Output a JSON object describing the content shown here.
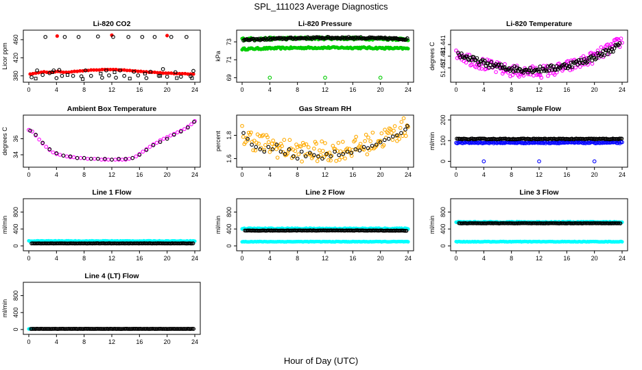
{
  "figure": {
    "title": "SPL_111023  Average Diagnostics",
    "xlabel": "Hour of Day (UTC)"
  },
  "chart_data": [
    {
      "type": "scatter",
      "title": "Li-820 CO2",
      "xlabel": "",
      "ylabel": "Licor ppm",
      "xlim": [
        0,
        24
      ],
      "ylim": [
        372,
        475
      ],
      "xticks": [
        "0",
        "4",
        "8",
        "12",
        "16",
        "20",
        "24"
      ],
      "yticks": [
        "380",
        "420",
        "460"
      ],
      "grid": false,
      "series": [
        {
          "marker": "circle-filled",
          "color": "#ff0000",
          "x": [
            0.2,
            0.6,
            1.0,
            1.4,
            1.8,
            2.2,
            2.6,
            3.0,
            3.4,
            3.8,
            4.2,
            4.6,
            5.0,
            5.4,
            5.8,
            6.2,
            6.6,
            7.0,
            7.4,
            7.8,
            8.2,
            8.6,
            9.0,
            9.4,
            9.8,
            10.2,
            10.6,
            11.0,
            11.4,
            11.8,
            12.2,
            12.6,
            13.0,
            13.4,
            13.8,
            14.2,
            14.6,
            15.0,
            15.4,
            15.8,
            16.2,
            16.6,
            17.0,
            17.4,
            17.8,
            18.2,
            18.6,
            19.0,
            19.4,
            19.8,
            20.2,
            20.6,
            21.0,
            21.4,
            21.8,
            22.2,
            22.6,
            23.0,
            23.4,
            23.8,
            4.1,
            12.0,
            20.0
          ],
          "y": [
            384,
            385,
            386,
            387,
            388,
            389,
            388,
            388,
            388,
            389,
            390,
            389,
            388,
            388,
            388,
            389,
            390,
            390,
            391,
            391,
            392,
            392,
            393,
            393,
            393,
            393,
            394,
            394,
            394,
            394,
            394,
            394,
            393,
            393,
            393,
            392,
            392,
            391,
            391,
            390,
            390,
            389,
            389,
            388,
            388,
            388,
            387,
            387,
            386,
            386,
            386,
            386,
            385,
            385,
            385,
            385,
            385,
            384,
            384,
            384,
            468,
            470,
            469
          ]
        },
        {
          "marker": "circle-open",
          "color": "#000000",
          "x": [
            0.4,
            1.2,
            2.0,
            2.4,
            3.0,
            3.6,
            4.0,
            4.4,
            4.8,
            5.2,
            6.4,
            7.2,
            7.6,
            8.2,
            9.0,
            10.0,
            10.6,
            11.2,
            11.6,
            12.2,
            12.6,
            13.2,
            13.8,
            14.4,
            15.2,
            15.8,
            16.4,
            17.0,
            17.6,
            18.2,
            18.8,
            19.4,
            20.0,
            20.6,
            21.2,
            22.0,
            22.8,
            23.4,
            23.8
          ],
          "y": [
            377,
            392,
            382,
            466,
            386,
            392,
            375,
            393,
            380,
            466,
            380,
            466,
            379,
            392,
            380,
            467,
            376,
            392,
            381,
            466,
            376,
            392,
            380,
            466,
            389,
            381,
            466,
            375,
            389,
            466,
            380,
            395,
            378,
            466,
            388,
            378,
            466,
            379,
            391
          ]
        },
        {
          "marker": "square-open",
          "color": "#000000",
          "x": [
            1.0,
            3.4,
            5.6,
            7.8,
            10.4,
            12.4,
            14.6,
            16.8,
            19.0,
            21.4,
            23.6
          ],
          "y": [
            374,
            388,
            382,
            373,
            385,
            388,
            374,
            385,
            380,
            375,
            375
          ]
        }
      ]
    },
    {
      "type": "scatter",
      "title": "Li-820 Pressure",
      "xlabel": "",
      "ylabel": "kPa",
      "xlim": [
        0,
        24
      ],
      "ylim": [
        68.8,
        74.0
      ],
      "xticks": [
        "0",
        "4",
        "8",
        "12",
        "16",
        "20",
        "24"
      ],
      "yticks": [
        "69",
        "71",
        "73"
      ],
      "grid": false,
      "series": [
        {
          "marker": "circle-filled",
          "color": "#00cc00",
          "description": "dense band",
          "band": {
            "x_start": 0,
            "x_end": 24,
            "y_start": 72.2,
            "y_mid": 72.35,
            "y_end": 72.25,
            "spread": 0.1
          }
        },
        {
          "marker": "circle-filled",
          "color": "#00cc00",
          "band": {
            "x_start": 0,
            "x_end": 24,
            "y_start": 73.3,
            "y_mid": 73.4,
            "y_end": 73.3,
            "spread": 0.15
          }
        },
        {
          "marker": "circle-open",
          "color": "#000000",
          "band": {
            "x_start": 0.2,
            "x_end": 24,
            "y_start": 73.2,
            "y_mid": 73.45,
            "y_end": 73.3,
            "spread": 0.1
          }
        },
        {
          "marker": "circle-open",
          "color": "#00cc00",
          "x": [
            4.0,
            12.0,
            20.0
          ],
          "y": [
            69.0,
            69.0,
            69.0
          ]
        }
      ]
    },
    {
      "type": "scatter",
      "title": "Li-820 Temperature",
      "xlabel": "",
      "ylabel": "degrees C",
      "xlim": [
        0,
        24
      ],
      "ylim": [
        51.4365,
        51.4425
      ],
      "xticks": [
        "0",
        "4",
        "8",
        "12",
        "16",
        "20",
        "24"
      ],
      "yticks": [
        "51.437",
        "51.441",
        "51.441"
      ],
      "grid": false,
      "series": [
        {
          "marker": "circle-open",
          "color": "#ff00ff",
          "band": {
            "x_start": 0,
            "x_end": 24,
            "y_start": 51.44,
            "y_mid": 51.4375,
            "y_end": 51.4415,
            "spread": 0.0008
          }
        },
        {
          "marker": "circle-open",
          "color": "#000000",
          "band": {
            "x_start": 0.3,
            "x_end": 23.8,
            "y_start": 51.4398,
            "y_mid": 51.4378,
            "y_end": 51.441,
            "spread": 0.0004
          }
        }
      ]
    },
    {
      "type": "scatter",
      "title": "Ambient Box Temperature",
      "xlabel": "",
      "ylabel": "degrees C",
      "xlim": [
        0,
        24
      ],
      "ylim": [
        32.8,
        38.6
      ],
      "xticks": [
        "0",
        "4",
        "8",
        "12",
        "16",
        "20",
        "24"
      ],
      "yticks": [
        "34",
        "36"
      ],
      "grid": false,
      "series": [
        {
          "marker": "circle-open",
          "color": "#ff00ff",
          "x": [
            0,
            0.5,
            1,
            1.5,
            2,
            2.5,
            3,
            3.5,
            4,
            4.5,
            5,
            5.5,
            6,
            6.5,
            7,
            7.5,
            8,
            8.5,
            9,
            9.5,
            10,
            10.5,
            11,
            11.5,
            12,
            12.5,
            13,
            13.5,
            14,
            14.5,
            15,
            15.5,
            16,
            16.5,
            17,
            17.5,
            18,
            18.5,
            19,
            19.5,
            20,
            20.5,
            21,
            21.5,
            22,
            22.5,
            23,
            23.5,
            24
          ],
          "y": [
            37.1,
            36.9,
            36.4,
            35.9,
            35.4,
            35.0,
            34.6,
            34.3,
            34.1,
            34.0,
            33.9,
            33.8,
            33.7,
            33.7,
            33.6,
            33.6,
            33.6,
            33.5,
            33.5,
            33.5,
            33.5,
            33.4,
            33.4,
            33.4,
            33.4,
            33.4,
            33.4,
            33.4,
            33.4,
            33.5,
            33.6,
            33.8,
            34.1,
            34.4,
            34.7,
            35.0,
            35.3,
            35.5,
            35.8,
            36.0,
            36.2,
            36.4,
            36.6,
            36.8,
            37.0,
            37.2,
            37.5,
            37.8,
            38.2
          ]
        },
        {
          "marker": "circle-open",
          "color": "#000000",
          "x": [
            0.2,
            1,
            2,
            3,
            4,
            5,
            6,
            7,
            8,
            9,
            10,
            11,
            12,
            13,
            14,
            15,
            16,
            17,
            18,
            19,
            20,
            21,
            22,
            23,
            23.9
          ],
          "y": [
            37.0,
            36.5,
            35.5,
            34.7,
            34.2,
            33.9,
            33.8,
            33.6,
            33.6,
            33.5,
            33.5,
            33.5,
            33.4,
            33.5,
            33.5,
            33.6,
            34.0,
            34.6,
            35.2,
            35.6,
            36.0,
            36.5,
            36.9,
            37.4,
            38.1
          ]
        }
      ]
    },
    {
      "type": "scatter",
      "title": "Gas Stream RH",
      "xlabel": "",
      "ylabel": "percent",
      "xlim": [
        0,
        24
      ],
      "ylim": [
        1.55,
        1.95
      ],
      "xticks": [
        "0",
        "4",
        "8",
        "12",
        "16",
        "20",
        "24"
      ],
      "yticks": [
        "1.6",
        "1.8"
      ],
      "grid": false,
      "series": [
        {
          "marker": "circle-open",
          "color": "#ffaa00",
          "band": {
            "x_start": 0,
            "x_end": 24,
            "y_start": 1.8,
            "y_mid": 1.66,
            "y_end": 1.88,
            "spread": 0.09
          }
        },
        {
          "marker": "circle-open",
          "color": "#000000",
          "x": [
            0.2,
            0.8,
            1.4,
            2.0,
            2.6,
            3.2,
            3.8,
            4.4,
            5.0,
            5.6,
            6.2,
            6.8,
            7.4,
            8.0,
            8.6,
            9.2,
            9.8,
            10.4,
            11.0,
            11.6,
            12.2,
            12.8,
            13.4,
            14.0,
            14.6,
            15.2,
            15.8,
            16.4,
            17.0,
            17.6,
            18.2,
            18.8,
            19.4,
            20.0,
            20.6,
            21.2,
            21.8,
            22.4,
            23.0,
            23.6,
            23.9
          ],
          "y": [
            1.82,
            1.77,
            1.72,
            1.7,
            1.68,
            1.66,
            1.7,
            1.68,
            1.72,
            1.66,
            1.64,
            1.68,
            1.62,
            1.6,
            1.66,
            1.62,
            1.65,
            1.63,
            1.62,
            1.6,
            1.64,
            1.62,
            1.66,
            1.63,
            1.64,
            1.66,
            1.65,
            1.68,
            1.67,
            1.7,
            1.69,
            1.71,
            1.72,
            1.74,
            1.76,
            1.77,
            1.79,
            1.8,
            1.82,
            1.85,
            1.88
          ]
        }
      ]
    },
    {
      "type": "scatter",
      "title": "Sample Flow",
      "xlabel": "",
      "ylabel": "ml/min",
      "xlim": [
        0,
        24
      ],
      "ylim": [
        -15,
        210
      ],
      "xticks": [
        "0",
        "4",
        "8",
        "12",
        "16",
        "20",
        "24"
      ],
      "yticks": [
        "0",
        "100",
        "200"
      ],
      "grid": false,
      "series": [
        {
          "marker": "circle-open",
          "color": "#0000ff",
          "band": {
            "x_start": 0,
            "x_end": 24,
            "y_start": 90,
            "y_mid": 90,
            "y_end": 90,
            "spread": 3
          }
        },
        {
          "marker": "circle-open",
          "color": "#000000",
          "band": {
            "x_start": 0.1,
            "x_end": 24,
            "y_start": 108,
            "y_mid": 108,
            "y_end": 108,
            "spread": 2
          }
        },
        {
          "marker": "circle-open",
          "color": "#0000ff",
          "x": [
            4.0,
            12.0,
            20.0
          ],
          "y": [
            0,
            0,
            0
          ]
        }
      ]
    },
    {
      "type": "scatter",
      "title": "Line 1 Flow",
      "xlabel": "",
      "ylabel": "ml/min",
      "xlim": [
        0,
        24
      ],
      "ylim": [
        -50,
        1050
      ],
      "xticks": [
        "0",
        "4",
        "8",
        "12",
        "16",
        "20",
        "24"
      ],
      "yticks": [
        "0",
        "400",
        "800"
      ],
      "grid": false,
      "series": [
        {
          "marker": "circle-filled",
          "color": "#00ffff",
          "band": {
            "x_start": 0,
            "x_end": 24,
            "y_start": 115,
            "y_mid": 115,
            "y_end": 115,
            "spread": 8
          }
        },
        {
          "marker": "circle-open",
          "color": "#000000",
          "band": {
            "x_start": 0.4,
            "x_end": 23.9,
            "y_start": 60,
            "y_mid": 60,
            "y_end": 60,
            "spread": 3
          }
        }
      ]
    },
    {
      "type": "scatter",
      "title": "Line 2 Flow",
      "xlabel": "",
      "ylabel": "ml/min",
      "xlim": [
        0,
        24
      ],
      "ylim": [
        -50,
        1050
      ],
      "xticks": [
        "0",
        "4",
        "8",
        "12",
        "16",
        "20",
        "24"
      ],
      "yticks": [
        "0",
        "400",
        "800"
      ],
      "grid": false,
      "series": [
        {
          "marker": "circle-filled",
          "color": "#00ffff",
          "band": {
            "x_start": 0,
            "x_end": 24,
            "y_start": 410,
            "y_mid": 410,
            "y_end": 410,
            "spread": 10
          }
        },
        {
          "marker": "circle-filled",
          "color": "#00ffff",
          "band": {
            "x_start": 0,
            "x_end": 24,
            "y_start": 100,
            "y_mid": 100,
            "y_end": 100,
            "spread": 6
          }
        },
        {
          "marker": "circle-open",
          "color": "#000000",
          "band": {
            "x_start": 0.4,
            "x_end": 23.9,
            "y_start": 360,
            "y_mid": 365,
            "y_end": 360,
            "spread": 4
          }
        }
      ]
    },
    {
      "type": "scatter",
      "title": "Line 3 Flow",
      "xlabel": "",
      "ylabel": "ml/min",
      "xlim": [
        0,
        24
      ],
      "ylim": [
        -50,
        1050
      ],
      "xticks": [
        "0",
        "4",
        "8",
        "12",
        "16",
        "20",
        "24"
      ],
      "yticks": [
        "0",
        "400",
        "800"
      ],
      "grid": false,
      "series": [
        {
          "marker": "circle-filled",
          "color": "#00ffff",
          "band": {
            "x_start": 0,
            "x_end": 24,
            "y_start": 565,
            "y_mid": 565,
            "y_end": 565,
            "spread": 10
          }
        },
        {
          "marker": "circle-filled",
          "color": "#00ffff",
          "band": {
            "x_start": 0,
            "x_end": 24,
            "y_start": 100,
            "y_mid": 100,
            "y_end": 100,
            "spread": 6
          }
        },
        {
          "marker": "circle-open",
          "color": "#000000",
          "band": {
            "x_start": 0.4,
            "x_end": 23.9,
            "y_start": 535,
            "y_mid": 535,
            "y_end": 535,
            "spread": 4
          }
        }
      ]
    },
    {
      "type": "scatter",
      "title": "Line 4 (LT) Flow",
      "xlabel": "",
      "ylabel": "ml/min",
      "xlim": [
        0,
        24
      ],
      "ylim": [
        -50,
        1050
      ],
      "xticks": [
        "0",
        "4",
        "8",
        "12",
        "16",
        "20",
        "24"
      ],
      "yticks": [
        "0",
        "400",
        "800"
      ],
      "grid": false,
      "series": [
        {
          "marker": "circle-filled",
          "color": "#00ffff",
          "band": {
            "x_start": 0,
            "x_end": 0.6,
            "y_start": 15,
            "y_mid": 15,
            "y_end": 15,
            "spread": 3
          }
        },
        {
          "marker": "circle-open",
          "color": "#000000",
          "band": {
            "x_start": 0.3,
            "x_end": 23.9,
            "y_start": 15,
            "y_mid": 15,
            "y_end": 15,
            "spread": 2
          }
        }
      ]
    }
  ]
}
